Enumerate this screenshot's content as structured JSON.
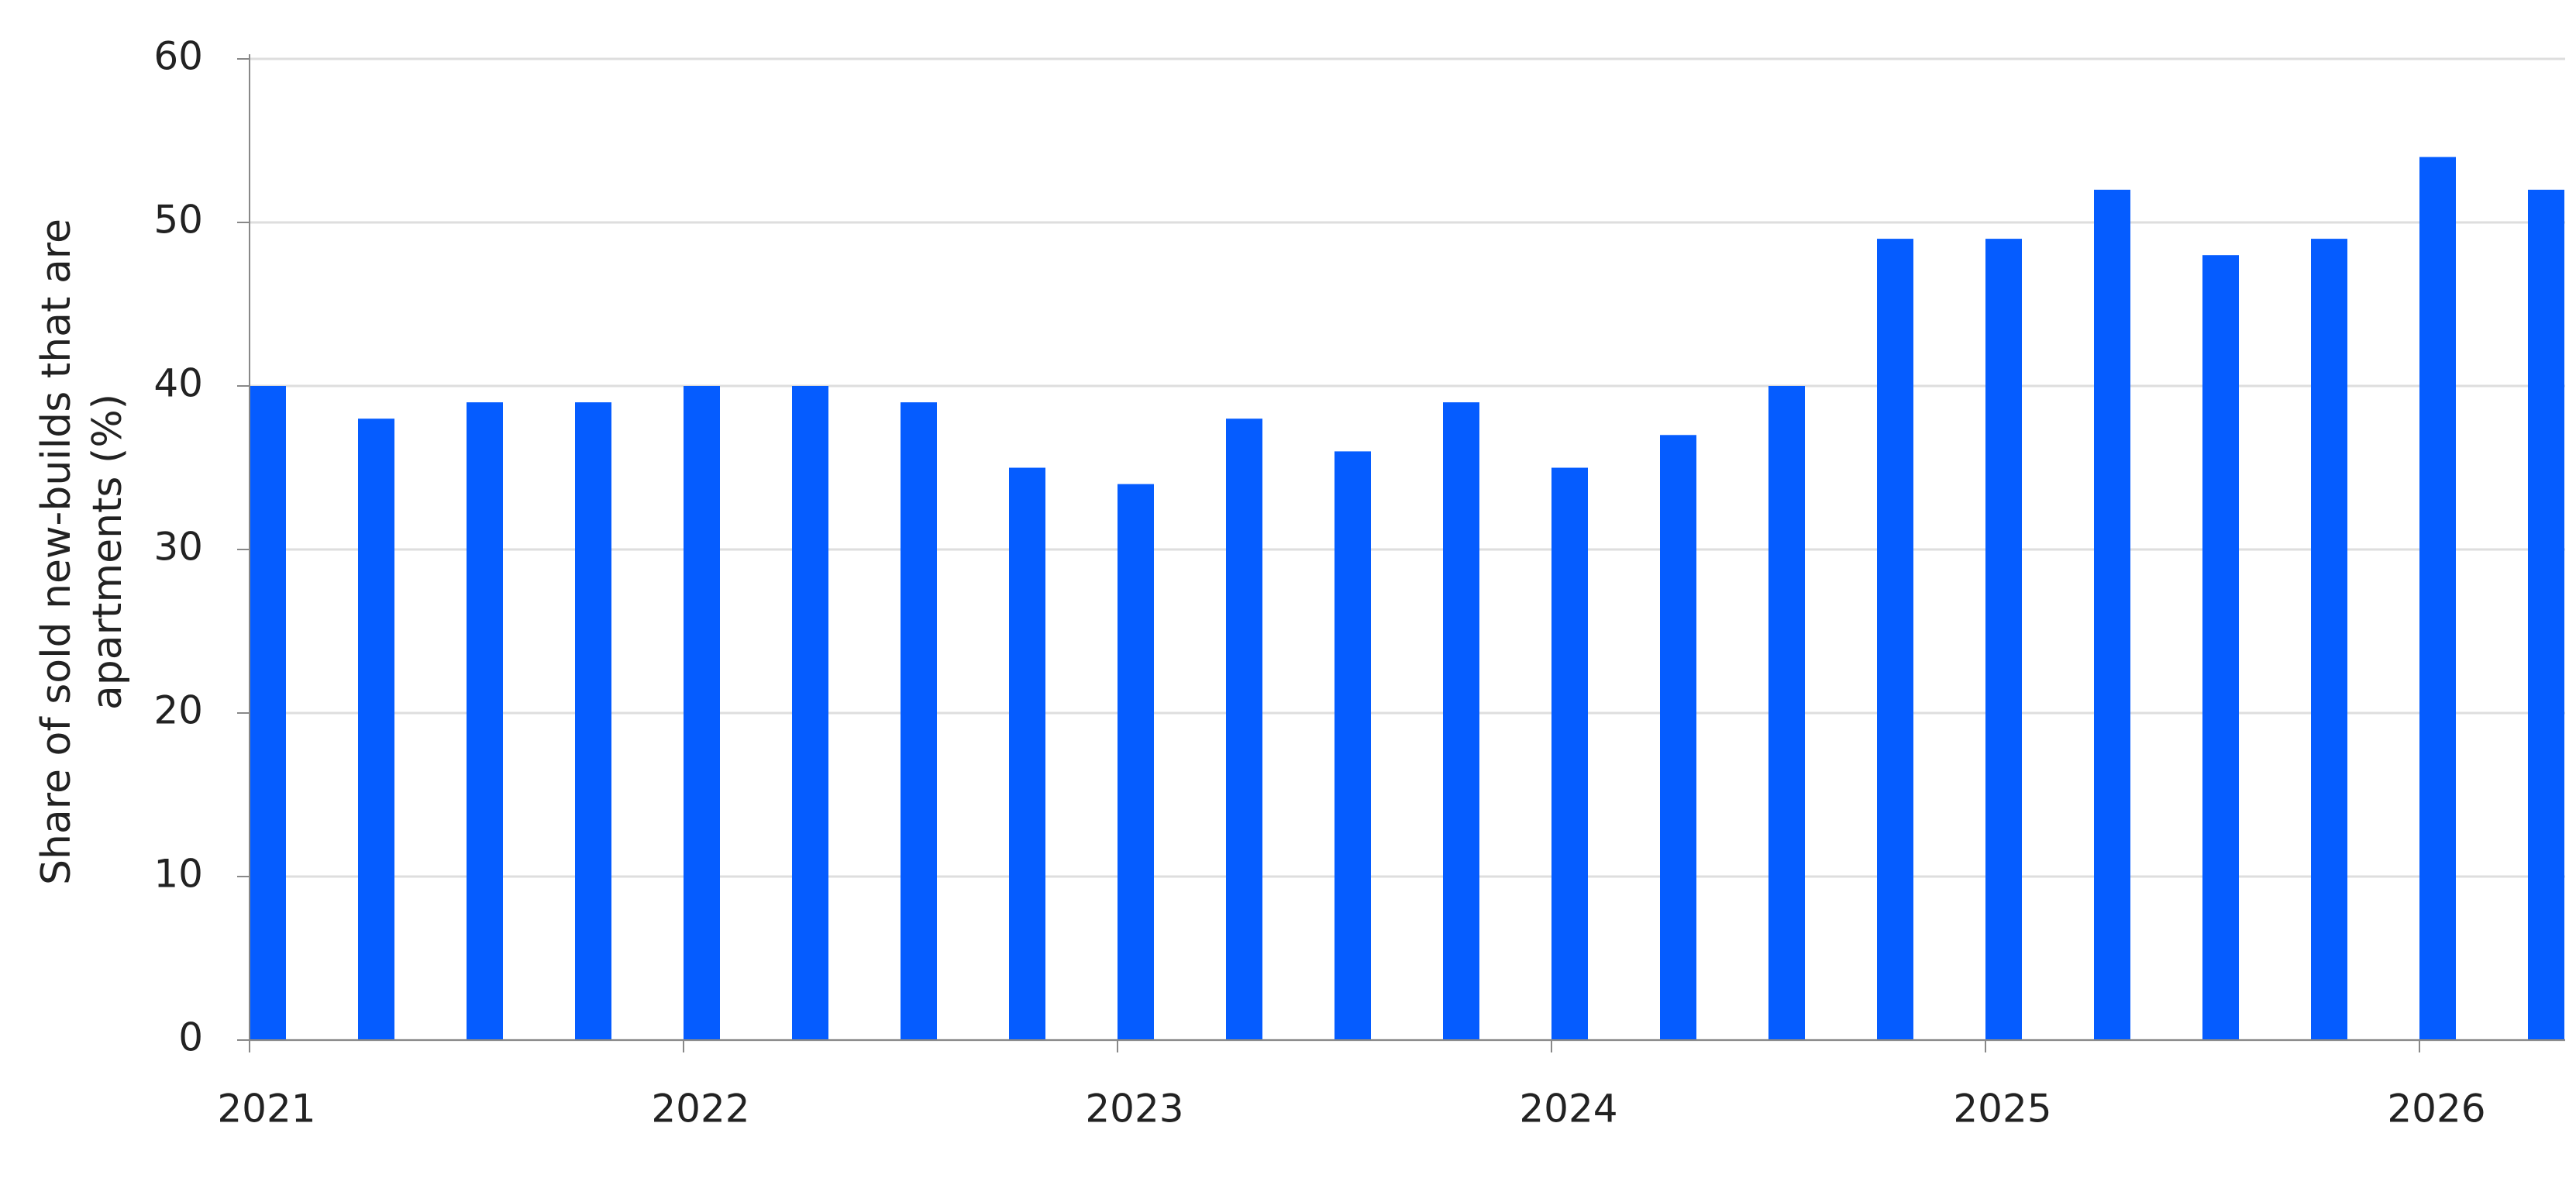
{
  "chart_data": {
    "type": "bar",
    "y_label": "Share of sold new-builds that are apartments (%)",
    "categories": [
      "2021",
      null,
      null,
      null,
      "2022",
      null,
      null,
      null,
      "2023",
      null,
      null,
      null,
      "2024",
      null,
      null,
      null,
      "2025",
      null,
      null,
      null,
      "2026",
      null
    ],
    "values": [
      40,
      38,
      39,
      39,
      40,
      40,
      39,
      35,
      34,
      38,
      36,
      39,
      35,
      37,
      40,
      49,
      49,
      52,
      48,
      49,
      54,
      52
    ],
    "color": "#055cff",
    "ylim": [
      0,
      60
    ],
    "yticks": [
      0,
      10,
      20,
      30,
      40,
      50,
      60
    ],
    "grid": true
  }
}
